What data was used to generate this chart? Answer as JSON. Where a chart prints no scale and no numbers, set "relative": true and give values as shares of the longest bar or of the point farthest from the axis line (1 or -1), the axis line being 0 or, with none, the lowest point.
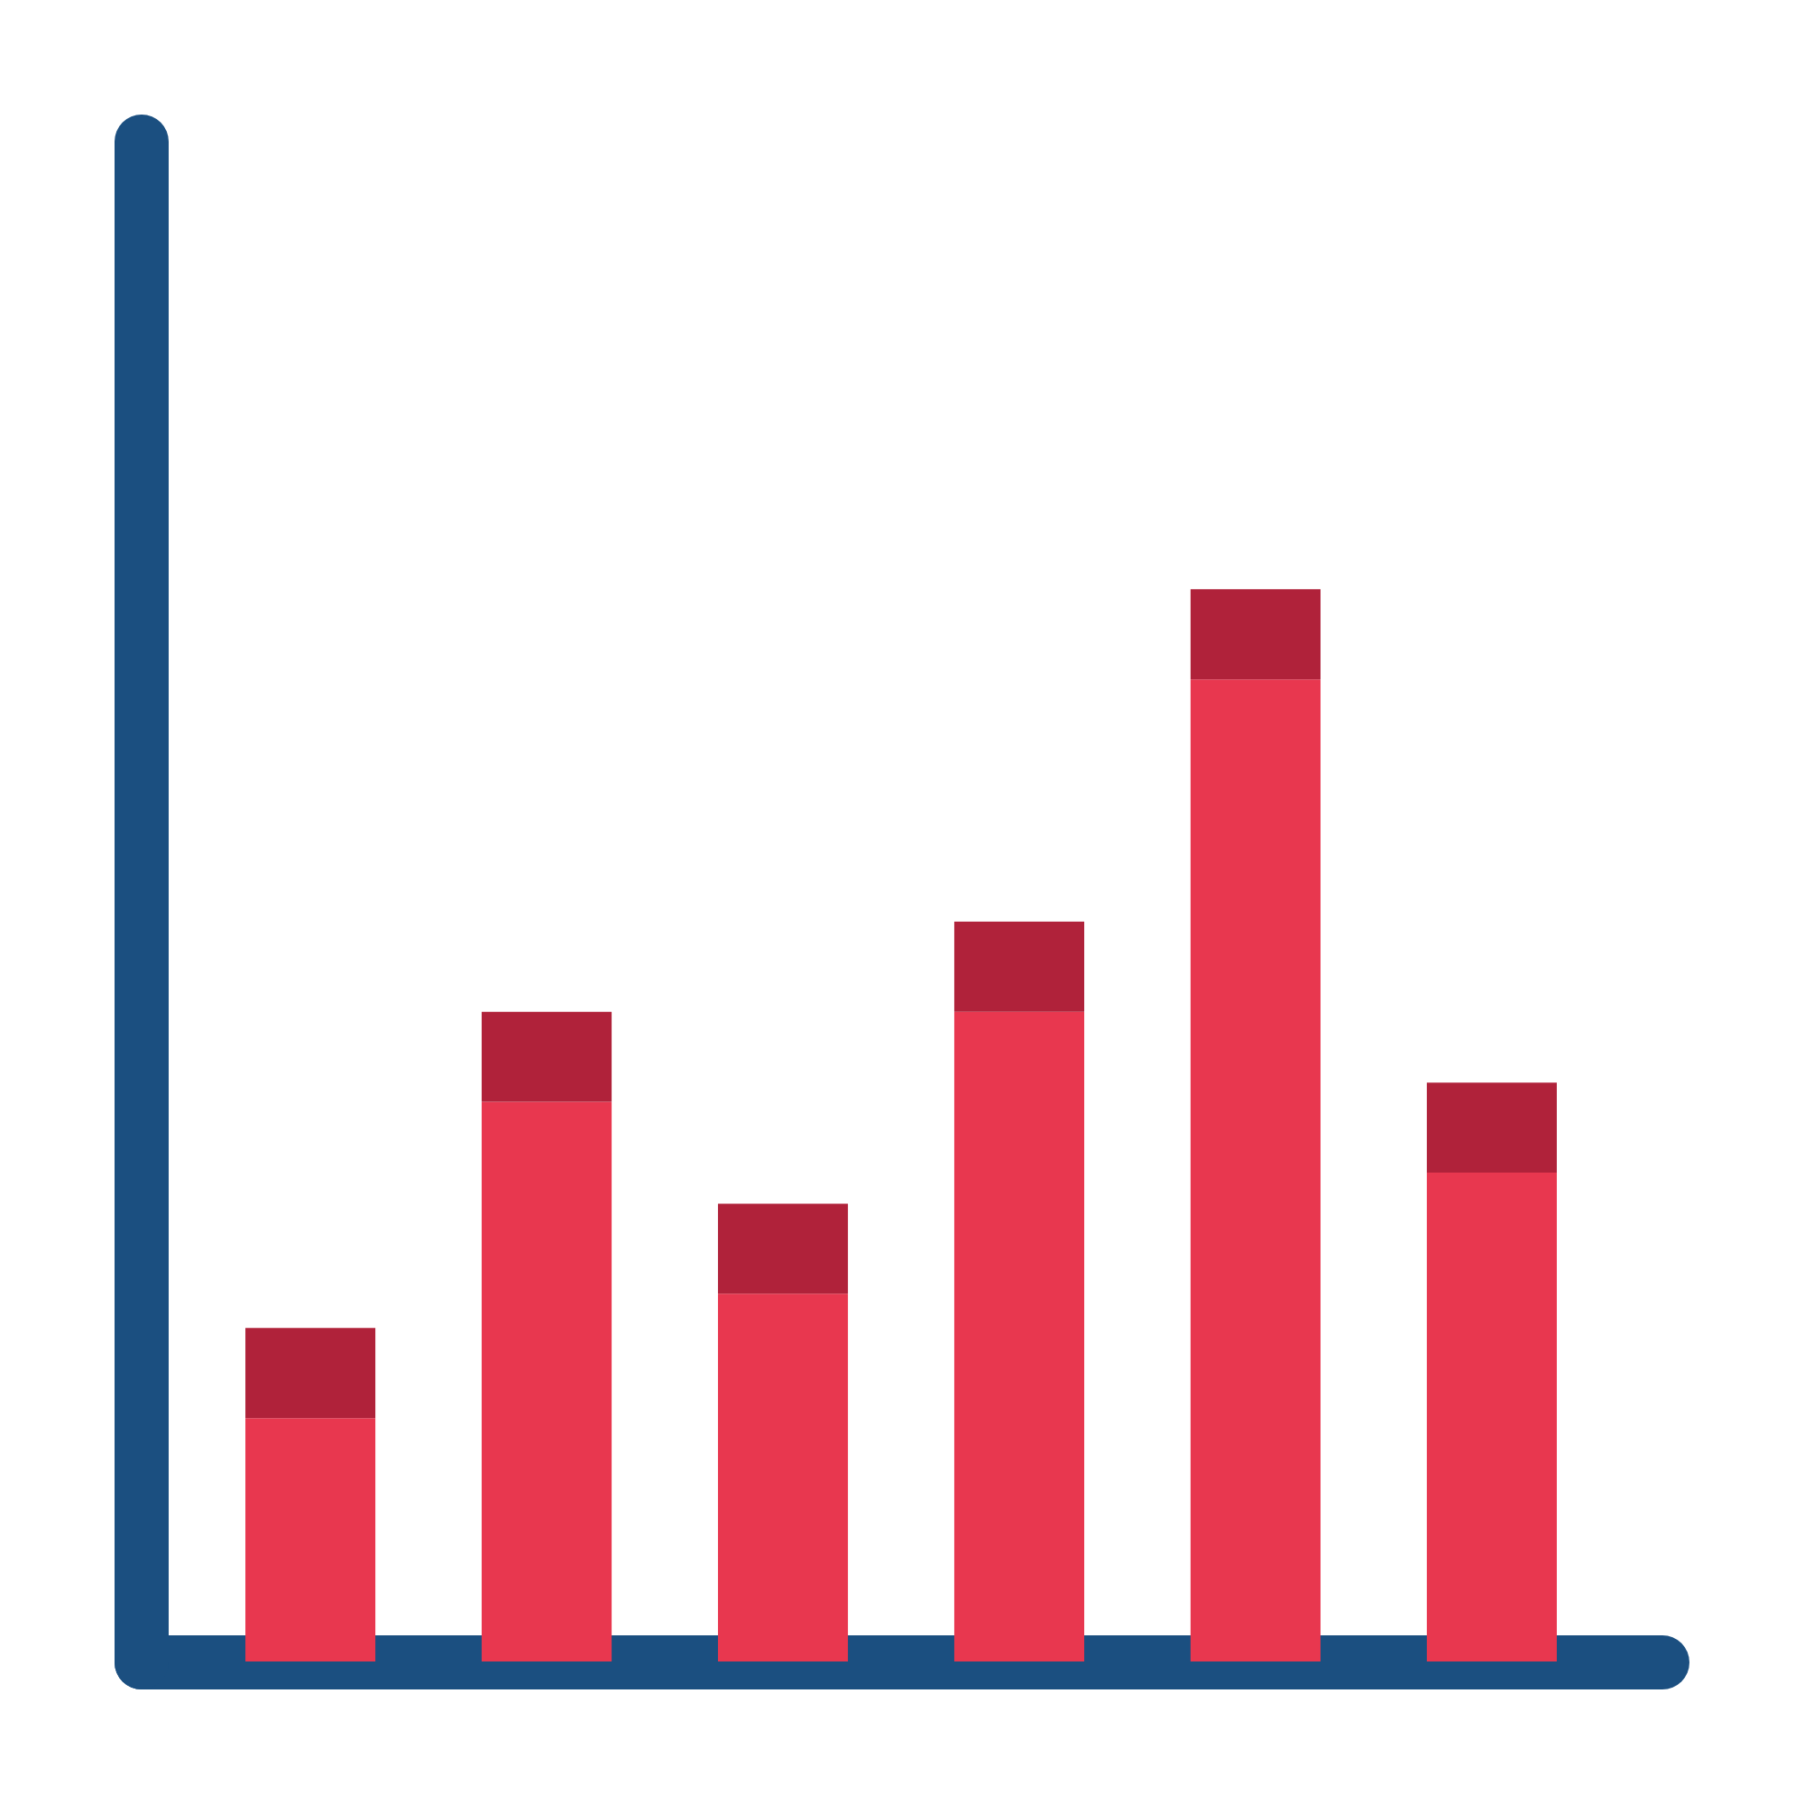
{
  "chart_data": {
    "type": "bar",
    "relative": true,
    "stacked": true,
    "categories": [
      null,
      null,
      null,
      null,
      null,
      null
    ],
    "series": [
      {
        "color": "#e8374f",
        "values": [
          0.227,
          0.522,
          0.343,
          0.606,
          0.916,
          0.456
        ]
      },
      {
        "color": "#b0223a",
        "values": [
          0.084,
          0.084,
          0.084,
          0.084,
          0.084,
          0.084
        ]
      }
    ]
  }
}
